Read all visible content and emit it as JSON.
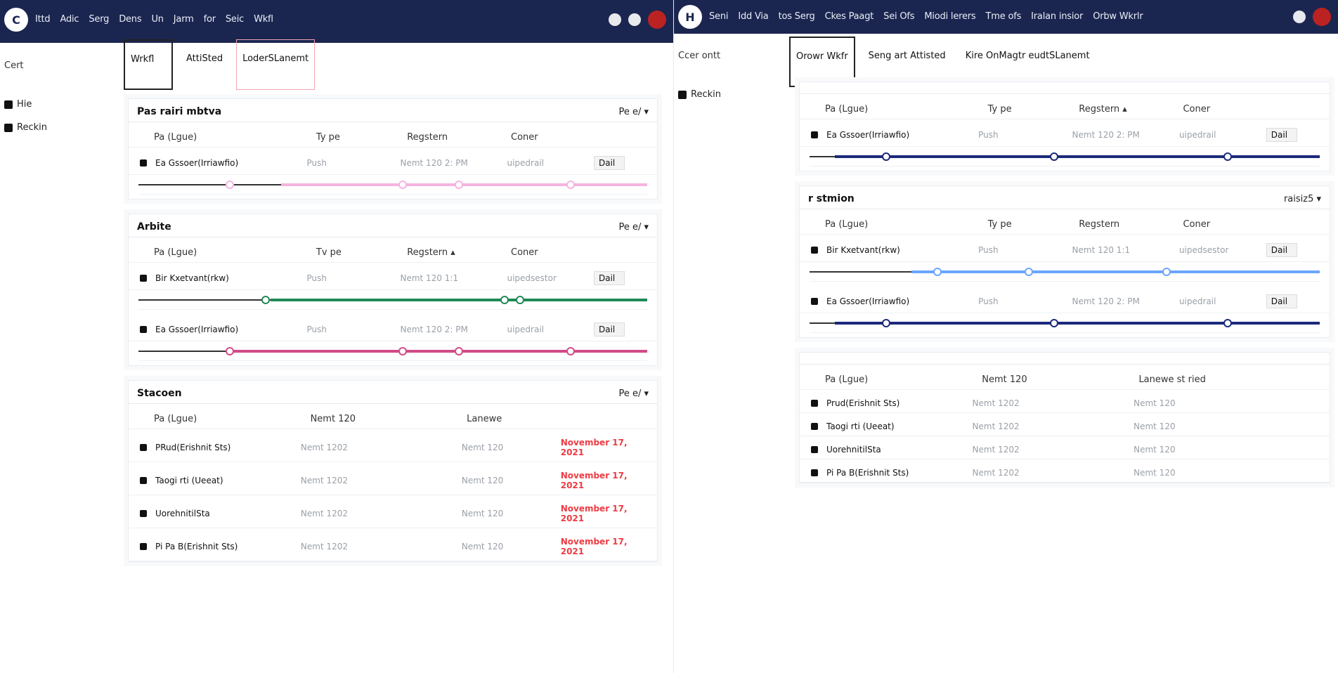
{
  "left": {
    "topbar": {
      "logo": "C",
      "nav": [
        "Ittd",
        "Adic",
        "Serg",
        "Dens",
        "Un",
        "Jarm",
        "for",
        "Seic",
        "Wkfl"
      ]
    },
    "sidebar": {
      "title": "Cert",
      "items": [
        "Hie",
        "Reckin"
      ]
    },
    "tabs": [
      "Wrkfl",
      "AttiSted",
      "LoderSLanemt"
    ],
    "cards": [
      {
        "title": "Pas rairi mbtva",
        "menu": "Pe e/ ▾",
        "columns": [
          "Pa (Lgue)",
          "Ty pe",
          "Regstern",
          "Coner",
          ""
        ],
        "rows": [
          {
            "name": "Ea Gssoer(Irriawfio)",
            "type": "Push",
            "reg": "Nemt 120 2: PM",
            "owner": "uipedrail",
            "action": "Dail"
          }
        ]
      },
      {
        "title": "Arbite",
        "menu": "Pe e/ ▾",
        "columns": [
          "Pa (Lgue)",
          "Tv pe",
          "Regstern ▴",
          "Coner",
          ""
        ],
        "rows": [
          {
            "name": "Bir Kxetvant(rkw)",
            "type": "Push",
            "reg": "Nemt 120 1:1",
            "owner": "uipedsestor",
            "action": "Dail"
          },
          {
            "name": "Ea Gssoer(Irriawfio)",
            "type": "Push",
            "reg": "Nemt 120 2: PM",
            "owner": "uipedrail",
            "action": "Dail"
          }
        ]
      },
      {
        "title": "Stacoen",
        "menu": "Pe e/ ▾",
        "columns": [
          "Pa (Lgue)",
          "Nemt 120",
          "Lanewe",
          ""
        ],
        "rows": [
          {
            "name": "PRud(Erishnit Sts)",
            "c2": "Nemt 1202",
            "c3": "Nemt 120",
            "c4": "November 17, 2021"
          },
          {
            "name": "Taogi rti (Ueeat)",
            "c2": "Nemt 1202",
            "c3": "Nemt 120",
            "c4": "November 17, 2021"
          },
          {
            "name": "UorehnitilSta",
            "c2": "Nemt 1202",
            "c3": "Nemt 120",
            "c4": "November 17, 2021"
          },
          {
            "name": "Pi Pa B(Erishnit Sts)",
            "c2": "Nemt 1202",
            "c3": "Nemt 120",
            "c4": "November 17, 2021"
          }
        ]
      }
    ]
  },
  "right": {
    "topbar": {
      "logo": "H",
      "nav": [
        "Seni",
        "Idd Via",
        "tos Serg",
        "Ckes Paagt",
        "Sei Ofs",
        "Miodi lerers",
        "Tme ofs",
        "Iralan insior",
        "Orbw Wkrlr"
      ]
    },
    "sidebar": {
      "title": "Ccer ontt",
      "items": [
        "Reckin"
      ]
    },
    "tabs": [
      "Orowr Wkfr",
      "Seng art Attisted",
      "Kire OnMagtr eudtSLanemt"
    ],
    "cards": [
      {
        "title": "",
        "menu": "",
        "columns": [
          "Pa (Lgue)",
          "Ty pe",
          "Regstern ▴",
          "Coner",
          ""
        ],
        "rows": [
          {
            "name": "Ea Gssoer(Irriawfio)",
            "type": "Push",
            "reg": "Nemt 120 2: PM",
            "owner": "uipedrail",
            "action": "Dail"
          }
        ]
      },
      {
        "title": "r stmion",
        "menu": "raisiz5 ▾",
        "columns": [
          "Pa (Lgue)",
          "Ty pe",
          "Regstern",
          "Coner",
          ""
        ],
        "rows": [
          {
            "name": "Bir Kxetvant(rkw)",
            "type": "Push",
            "reg": "Nemt 120 1:1",
            "owner": "uipedsestor",
            "action": "Dail"
          },
          {
            "name": "Ea Gssoer(Irriawfio)",
            "type": "Push",
            "reg": "Nemt 120 2: PM",
            "owner": "uipedrail",
            "action": "Dail"
          }
        ]
      },
      {
        "title": "",
        "menu": "",
        "columns": [
          "Pa (Lgue)",
          "Nemt 120",
          "Lanewe st ried",
          ""
        ],
        "rows": [
          {
            "name": "Prud(Erishnit Sts)",
            "c2": "Nemt 1202",
            "c3": "Nemt 120",
            "c4": ""
          },
          {
            "name": "Taogi rti (Ueeat)",
            "c2": "Nemt 1202",
            "c3": "Nemt 120",
            "c4": ""
          },
          {
            "name": "UorehnitilSta",
            "c2": "Nemt 1202",
            "c3": "Nemt 120",
            "c4": ""
          },
          {
            "name": "Pi Pa B(Erishnit Sts)",
            "c2": "Nemt 1202",
            "c3": "Nemt 120",
            "c4": ""
          }
        ]
      }
    ]
  },
  "colors": {
    "nav": "#1b2650",
    "accentPink": "#f3a6d9",
    "accentGreen": "#1e8a57",
    "accentBlue": "#1b2a7a",
    "danger": "#ee3b43"
  },
  "pipelines": {
    "left0": {
      "color": "#f6b3e0"
    },
    "left1": {
      "color": "#1e8a57"
    },
    "left2": {
      "color": "#d14a88"
    },
    "right0": {
      "color": "#1b2a7a"
    },
    "right1": {
      "color": "#6ba6ff"
    },
    "right2": {
      "color": "#1b2a7a"
    }
  }
}
